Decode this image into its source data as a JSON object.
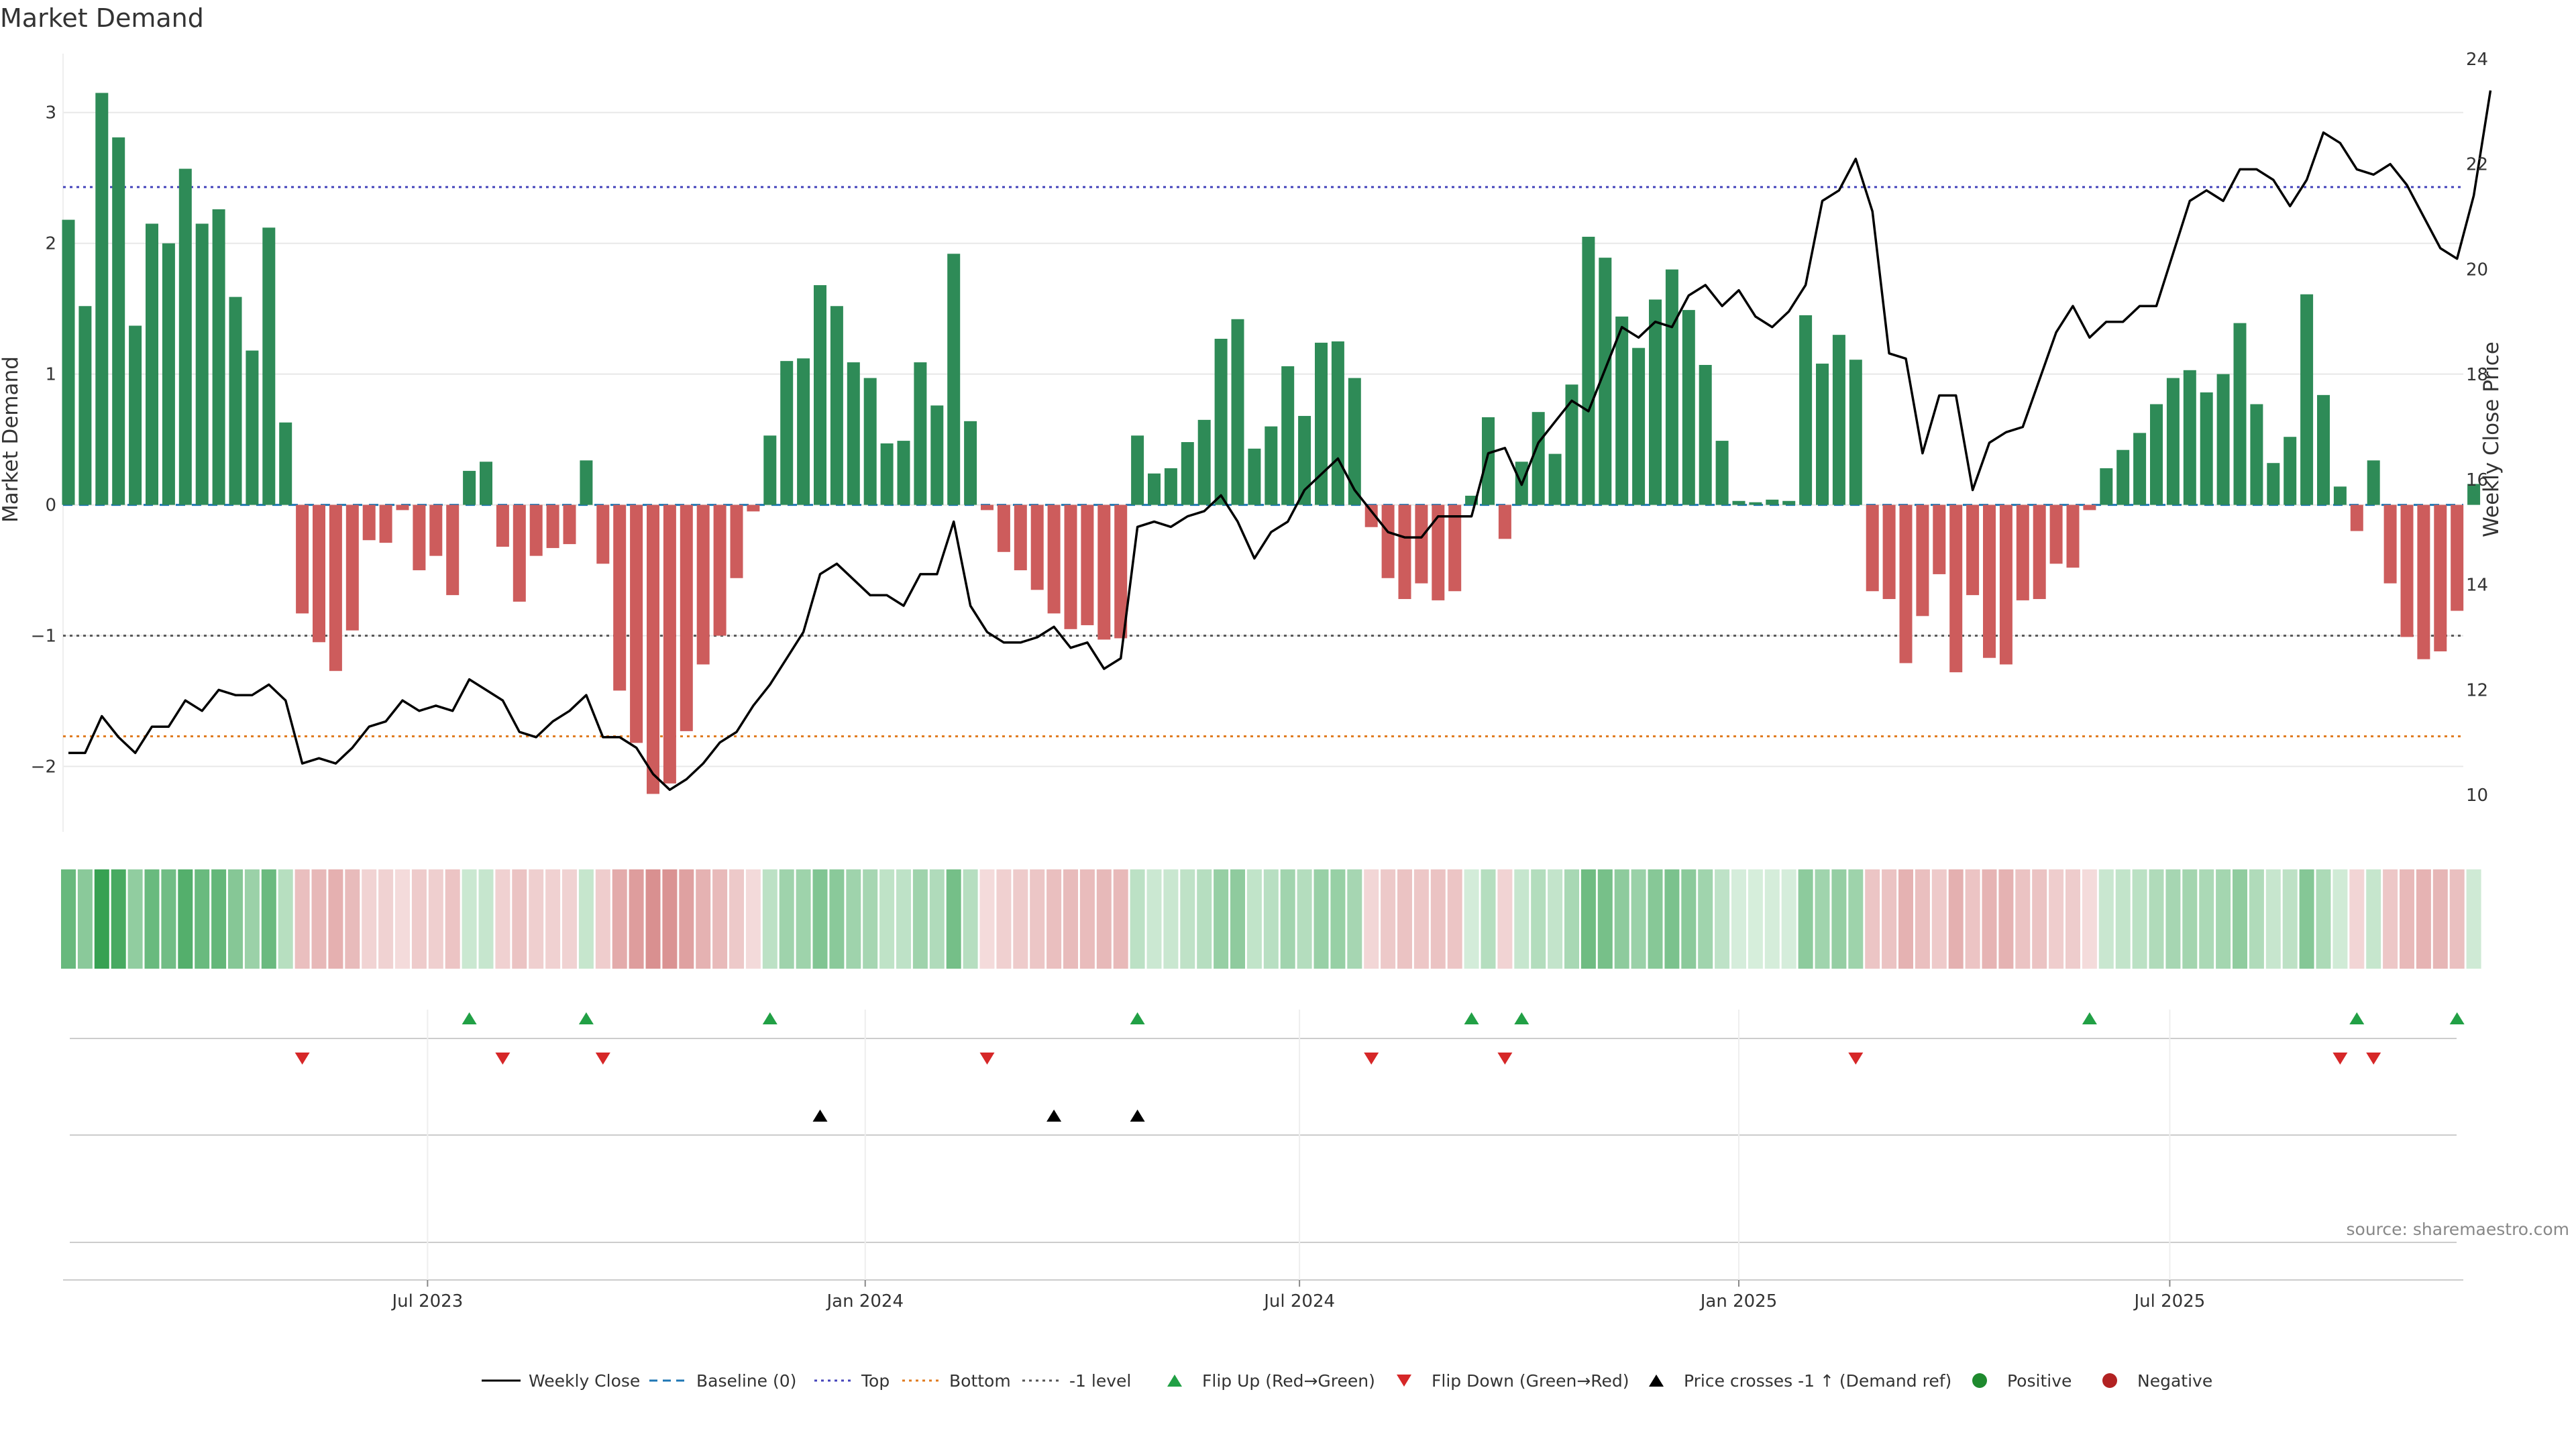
{
  "chart_data": {
    "type": "bar",
    "title": "Market Demand",
    "ylabel": "Market Demand",
    "y2label": "Weekly Close Price",
    "ylim": [
      -2.5,
      3.45
    ],
    "y2lim": [
      9.3,
      24.1
    ],
    "yticks": [
      3,
      2,
      1,
      0,
      -1,
      -2
    ],
    "ytick_labels": [
      "3",
      "2",
      "1",
      "0",
      "−1",
      "−2"
    ],
    "y2ticks": [
      24,
      22,
      20,
      18,
      16,
      14,
      12,
      10
    ],
    "y2tick_labels": [
      "24",
      "22",
      "20",
      "18",
      "16",
      "14",
      "12",
      "10"
    ],
    "x_ticks": [
      {
        "label": "Jul 2023",
        "week": 21.5
      },
      {
        "label": "Jan 2024",
        "week": 47.7
      },
      {
        "label": "Jul 2024",
        "week": 73.7
      },
      {
        "label": "Jan 2025",
        "week": 100.0
      },
      {
        "label": "Jul 2025",
        "week": 125.8
      }
    ],
    "reference_lines": {
      "top": 2.43,
      "bottom": -1.77,
      "minus_one": -1.0,
      "baseline": 0
    },
    "series": [
      {
        "name": "Market Demand",
        "kind": "bar",
        "axis": "left",
        "values": [
          2.18,
          1.52,
          3.15,
          2.81,
          1.37,
          2.15,
          2.0,
          2.57,
          2.15,
          2.26,
          1.59,
          1.18,
          2.12,
          0.63,
          -0.83,
          -1.05,
          -1.27,
          -0.96,
          -0.27,
          -0.29,
          -0.04,
          -0.5,
          -0.39,
          -0.69,
          0.26,
          0.33,
          -0.32,
          -0.74,
          -0.39,
          -0.33,
          -0.3,
          0.34,
          -0.45,
          -1.42,
          -1.82,
          -2.21,
          -2.13,
          -1.73,
          -1.22,
          -1.0,
          -0.56,
          -0.05,
          0.53,
          1.1,
          1.12,
          1.68,
          1.52,
          1.09,
          0.97,
          0.47,
          0.49,
          1.09,
          0.76,
          1.92,
          0.64,
          -0.04,
          -0.36,
          -0.5,
          -0.65,
          -0.83,
          -0.95,
          -0.92,
          -1.03,
          -1.02,
          0.53,
          0.24,
          0.28,
          0.48,
          0.65,
          1.27,
          1.42,
          0.43,
          0.6,
          1.06,
          0.68,
          1.24,
          1.25,
          0.97,
          -0.17,
          -0.56,
          -0.72,
          -0.6,
          -0.73,
          -0.66,
          0.07,
          0.67,
          -0.26,
          0.33,
          0.71,
          0.39,
          0.92,
          2.05,
          1.89,
          1.44,
          1.2,
          1.57,
          1.8,
          1.49,
          1.07,
          0.49,
          0.03,
          0.02,
          0.04,
          0.03,
          1.45,
          1.08,
          1.3,
          1.11,
          -0.66,
          -0.72,
          -1.21,
          -0.85,
          -0.53,
          -1.28,
          -0.69,
          -1.17,
          -1.22,
          -0.73,
          -0.72,
          -0.45,
          -0.48,
          -0.04,
          0.28,
          0.42,
          0.55,
          0.77,
          0.97,
          1.03,
          0.86,
          1.0,
          1.39,
          0.77,
          0.32,
          0.52,
          1.61,
          0.84,
          0.14,
          -0.2,
          0.34,
          -0.6,
          -1.01,
          -1.18,
          -1.12,
          -0.81,
          0.16
        ]
      },
      {
        "name": "Weekly Close",
        "kind": "line",
        "axis": "right",
        "values": [
          10.8,
          10.8,
          11.5,
          11.1,
          10.8,
          11.3,
          11.3,
          11.8,
          11.6,
          12.0,
          11.9,
          11.9,
          12.1,
          11.8,
          10.6,
          10.7,
          10.6,
          10.9,
          11.3,
          11.4,
          11.8,
          11.6,
          11.7,
          11.6,
          12.2,
          12.0,
          11.8,
          11.2,
          11.1,
          11.4,
          11.6,
          11.9,
          11.1,
          11.1,
          10.9,
          10.4,
          10.1,
          10.3,
          10.6,
          11.0,
          11.2,
          11.7,
          12.1,
          12.6,
          13.1,
          14.2,
          14.4,
          14.1,
          13.8,
          13.8,
          13.6,
          14.2,
          14.2,
          15.2,
          13.6,
          13.1,
          12.9,
          12.9,
          13.0,
          13.2,
          12.8,
          12.9,
          12.4,
          12.6,
          15.1,
          15.2,
          15.1,
          15.3,
          15.4,
          15.7,
          15.2,
          14.5,
          15.0,
          15.2,
          15.8,
          16.1,
          16.4,
          15.8,
          15.4,
          15.0,
          14.9,
          14.9,
          15.3,
          15.3,
          15.3,
          16.5,
          16.6,
          15.9,
          16.7,
          17.1,
          17.5,
          17.3,
          18.1,
          18.9,
          18.7,
          19.0,
          18.9,
          19.5,
          19.7,
          19.3,
          19.6,
          19.1,
          18.9,
          19.2,
          19.7,
          21.3,
          21.5,
          22.1,
          21.1,
          18.4,
          18.3,
          16.5,
          17.6,
          17.6,
          15.8,
          16.7,
          16.9,
          17.0,
          17.9,
          18.8,
          19.3,
          18.7,
          19.0,
          19.0,
          19.3,
          19.3,
          20.3,
          21.3,
          21.5,
          21.3,
          21.9,
          21.9,
          21.7,
          21.2,
          21.7,
          22.6,
          22.4,
          21.9,
          21.8,
          22.0,
          21.6,
          21.0,
          20.4,
          20.2,
          21.4,
          23.4
        ]
      },
      {
        "name": "Flip Up (Red→Green)",
        "kind": "marker",
        "weeks": [
          24,
          31,
          42,
          64,
          84,
          87,
          121,
          137,
          143
        ]
      },
      {
        "name": "Flip Down (Green→Red)",
        "kind": "marker",
        "weeks": [
          14,
          26,
          32,
          55,
          78,
          86,
          107,
          136,
          138
        ]
      },
      {
        "name": "Price crosses -1 ↑ (Demand ref)",
        "kind": "marker",
        "weeks": [
          45,
          59,
          64
        ]
      }
    ],
    "legend": {
      "position": "bottom-center",
      "items": [
        {
          "label": "Weekly Close",
          "style": "line",
          "color": "#000000"
        },
        {
          "label": "Baseline (0)",
          "style": "dashed",
          "color": "#1f77b4"
        },
        {
          "label": "Top",
          "style": "dotted",
          "color": "#4444bb"
        },
        {
          "label": "Bottom",
          "style": "dotted",
          "color": "#e07b1f"
        },
        {
          "label": "-1 level",
          "style": "dotted",
          "color": "#555555"
        },
        {
          "label": "Flip Up (Red→Green)",
          "style": "tri-up",
          "color": "#21a045"
        },
        {
          "label": "Flip Down (Green→Red)",
          "style": "tri-down",
          "color": "#d62728"
        },
        {
          "label": "Price crosses -1 ↑ (Demand ref)",
          "style": "tri-up",
          "color": "#000000"
        },
        {
          "label": "Positive",
          "style": "dot",
          "color": "#1e8a2e"
        },
        {
          "label": "Negative",
          "style": "dot",
          "color": "#b22222"
        }
      ]
    },
    "source": "source: sharemaestro.com",
    "colors": {
      "pos_bar": "#2e8b57",
      "neg_bar": "#cd5c5c",
      "line": "#000000",
      "flip_up": "#21a045",
      "flip_down": "#d62728",
      "cross": "#000000"
    }
  }
}
